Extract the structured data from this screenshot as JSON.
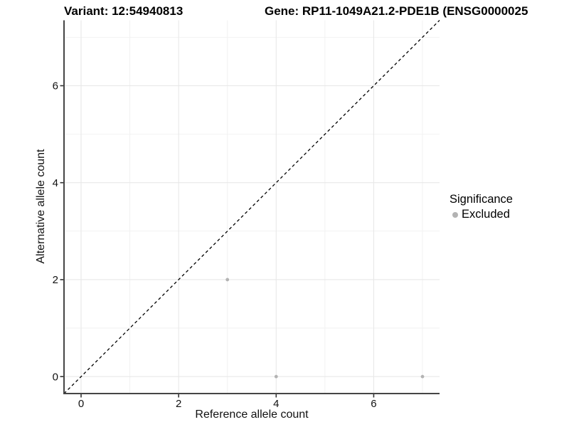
{
  "chart_data": {
    "type": "scatter",
    "title_left": "Variant: 12:54940813",
    "title_right": "Gene: RP11-1049A21.2-PDE1B (ENSG0000025",
    "xlabel": "Reference allele count",
    "ylabel": "Alternative allele count",
    "xlim": [
      -0.35,
      7.35
    ],
    "ylim": [
      -0.35,
      7.35
    ],
    "x_ticks": [
      0,
      2,
      4,
      6
    ],
    "y_ticks": [
      0,
      2,
      4,
      6
    ],
    "x_minor_gridlines": [
      1,
      3,
      5,
      7
    ],
    "y_minor_gridlines": [
      1,
      3,
      5,
      7
    ],
    "grid": true,
    "legend_position": "right",
    "identity_line": {
      "dashed": true,
      "color": "#000000",
      "from": [
        -0.35,
        -0.35
      ],
      "to": [
        7.35,
        7.35
      ]
    },
    "series": [
      {
        "name": "Excluded",
        "color": "#b3b3b3",
        "points": [
          {
            "x": 3,
            "y": 2
          },
          {
            "x": 4,
            "y": 0
          },
          {
            "x": 7,
            "y": 0
          }
        ]
      }
    ],
    "legend": {
      "title": "Significance",
      "entries": [
        {
          "label": "Excluded",
          "color": "#b3b3b3"
        }
      ]
    },
    "colors": {
      "background": "#ffffff",
      "gridline_major": "#e8e8e8",
      "gridline_minor": "#f2f2f2",
      "axis_line": "#454545",
      "tick_mark": "#333333",
      "tick_label": "#111111",
      "point": "#b3b3b3"
    }
  }
}
